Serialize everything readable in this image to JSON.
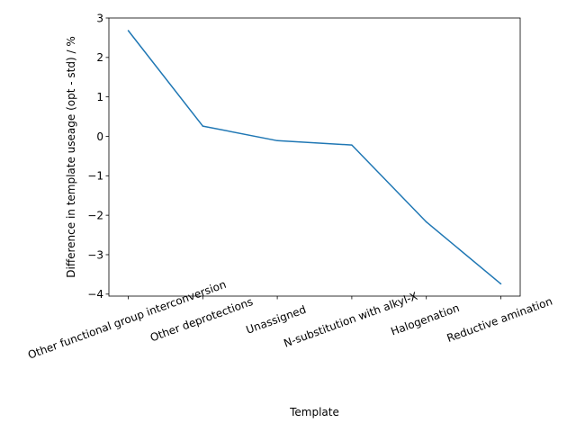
{
  "chart_data": {
    "type": "line",
    "categories": [
      "Other functional group interconversion",
      "Other deprotections",
      "Unassigned",
      "N-substitution with alkyl-X",
      "Halogenation",
      "Reductive amination"
    ],
    "series": [
      {
        "values": [
          2.68,
          0.26,
          -0.11,
          -0.22,
          -2.17,
          -3.74
        ]
      }
    ],
    "xlabel": "Template",
    "ylabel": "Difference in template useage (opt - std) / %",
    "ylim": [
      -4.05,
      3.0
    ],
    "yticks": [
      -4,
      -3,
      -2,
      -1,
      0,
      1,
      2,
      3
    ],
    "ytick_labels": [
      "−4",
      "−3",
      "−2",
      "−1",
      "0",
      "1",
      "2",
      "3"
    ],
    "xtick_rotation_deg": 20,
    "grid": false,
    "line_color": "#1f77b4"
  }
}
